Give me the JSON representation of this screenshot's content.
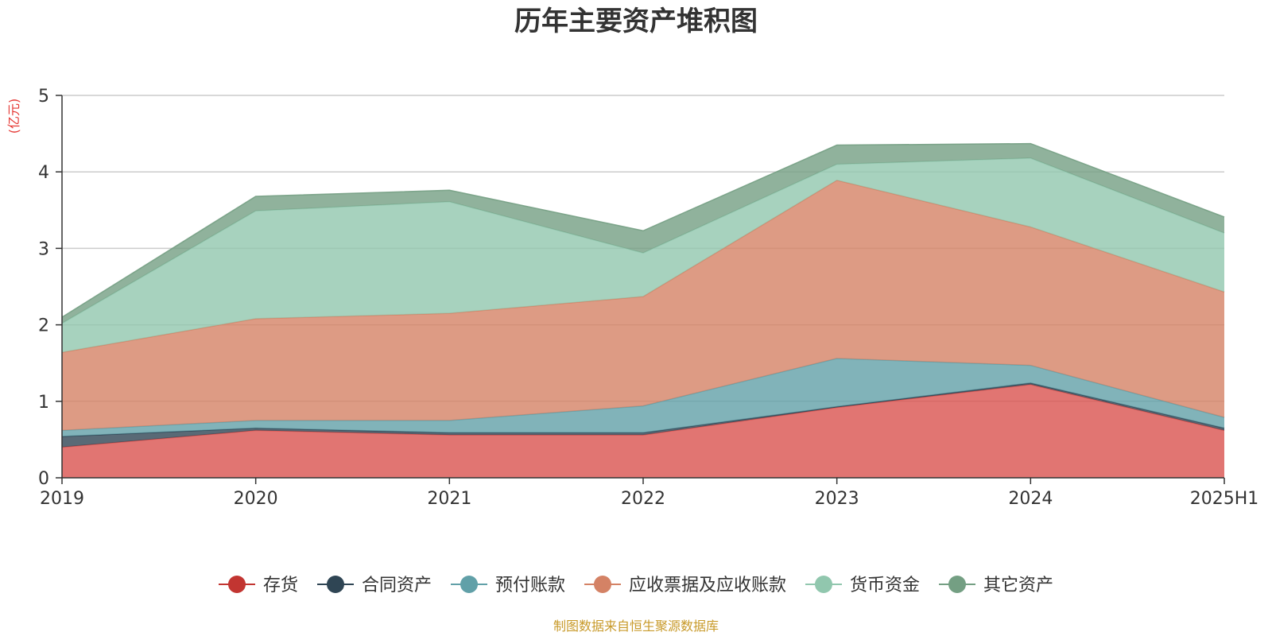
{
  "chart_data": {
    "type": "area",
    "stacked": true,
    "title": "历年主要资产堆积图",
    "unit_label": "(亿元)",
    "categories": [
      "2019",
      "2020",
      "2021",
      "2022",
      "2023",
      "2024",
      "2025H1"
    ],
    "y_ticks": [
      "0",
      "1",
      "2",
      "3",
      "4",
      "5"
    ],
    "ylim": [
      0,
      5
    ],
    "grid": true,
    "legend_position": "bottom",
    "series": [
      {
        "name": "存货",
        "color": "#d9534f",
        "legend_color": "#c23531",
        "values": [
          0.4,
          0.62,
          0.56,
          0.56,
          0.92,
          1.22,
          0.62
        ]
      },
      {
        "name": "合同资产",
        "color": "#2f4554",
        "legend_color": "#2f4554",
        "values": [
          0.14,
          0.03,
          0.03,
          0.03,
          0.01,
          0.02,
          0.03
        ]
      },
      {
        "name": "预付账款",
        "color": "#61a0a8",
        "legend_color": "#61a0a8",
        "values": [
          0.08,
          0.1,
          0.16,
          0.35,
          0.63,
          0.23,
          0.14
        ]
      },
      {
        "name": "应收票据及应收账款",
        "color": "#d48265",
        "legend_color": "#d48265",
        "values": [
          1.02,
          1.33,
          1.4,
          1.43,
          2.33,
          1.81,
          1.64
        ]
      },
      {
        "name": "货币资金",
        "color": "#91c7ae",
        "legend_color": "#91c7ae",
        "values": [
          0.38,
          1.41,
          1.46,
          0.57,
          0.21,
          0.9,
          0.77
        ]
      },
      {
        "name": "其它资产",
        "color": "#749f83",
        "legend_color": "#749f83",
        "values": [
          0.08,
          0.19,
          0.15,
          0.29,
          0.25,
          0.19,
          0.21
        ]
      }
    ]
  },
  "footer": {
    "source": "制图数据来自恒生聚源数据库"
  }
}
